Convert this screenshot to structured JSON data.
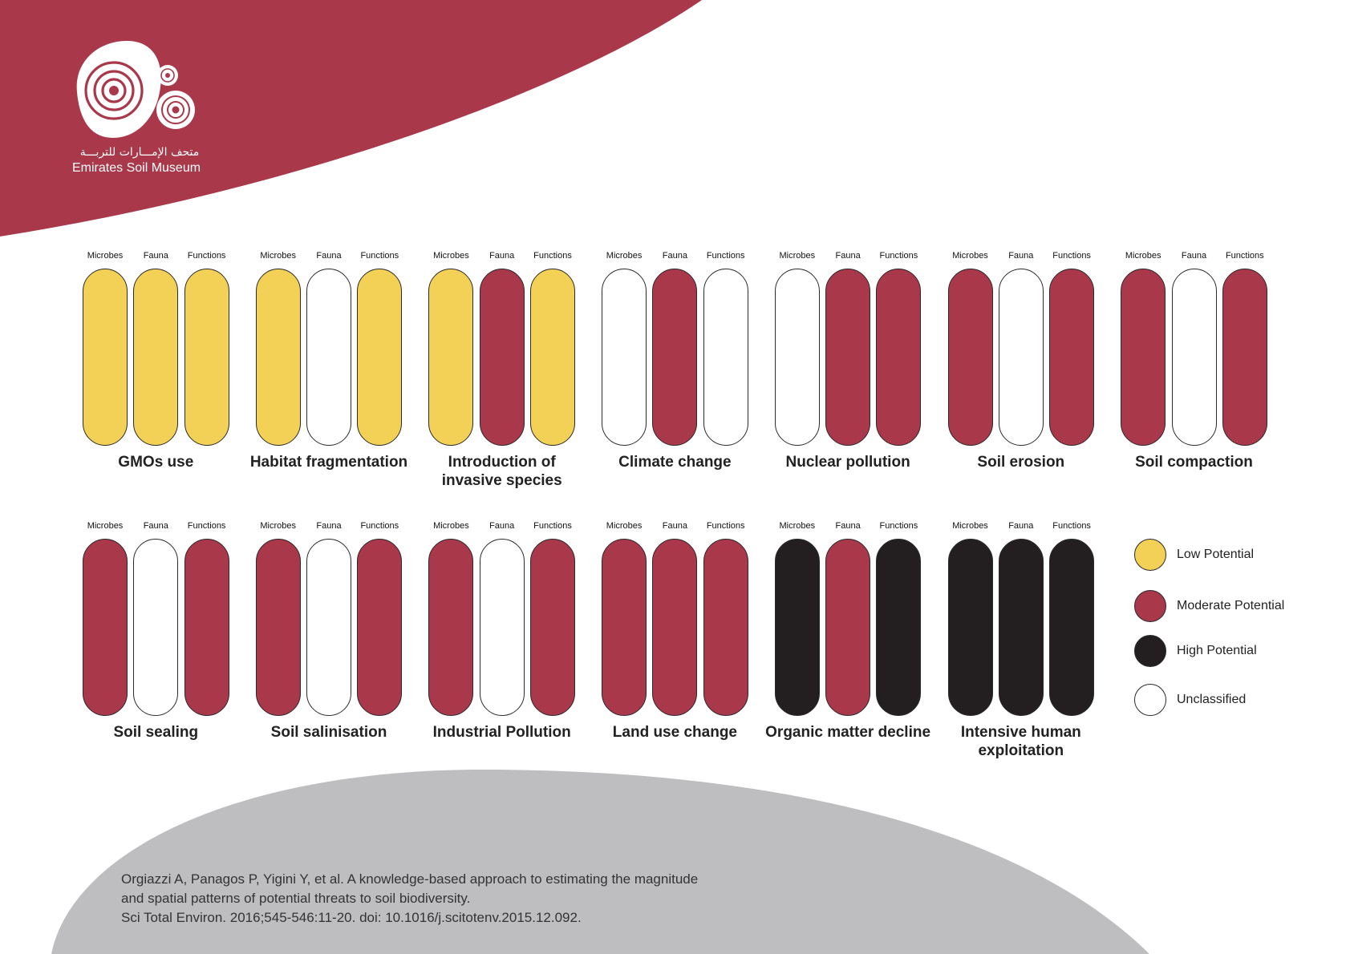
{
  "brand": {
    "name_ar": "متحف الإمـــارات للتربـــة",
    "name_en": "Emirates Soil Museum"
  },
  "theme": {
    "band_color": "#A9384B",
    "footer_color": "#BEBEC0"
  },
  "chart_data": {
    "type": "heatmap",
    "columns": [
      "Microbes",
      "Fauna",
      "Functions"
    ],
    "legend": [
      {
        "label": "Low Potential",
        "color": "#F2D156"
      },
      {
        "label": "Moderate Potential",
        "color": "#A9384B"
      },
      {
        "label": "High Potential",
        "color": "#231F20"
      },
      {
        "label": "Unclassified",
        "color": "#FFFFFF"
      }
    ],
    "threats": [
      {
        "label": [
          "GMOs use"
        ],
        "values": [
          "Low Potential",
          "Low Potential",
          "Low Potential"
        ]
      },
      {
        "label": [
          "Habitat fragmentation"
        ],
        "values": [
          "Low Potential",
          "Unclassified",
          "Low Potential"
        ]
      },
      {
        "label": [
          "Introduction of",
          "invasive species"
        ],
        "values": [
          "Low Potential",
          "Moderate Potential",
          "Low Potential"
        ]
      },
      {
        "label": [
          "Climate change"
        ],
        "values": [
          "Unclassified",
          "Moderate Potential",
          "Unclassified"
        ]
      },
      {
        "label": [
          "Nuclear pollution"
        ],
        "values": [
          "Unclassified",
          "Moderate Potential",
          "Moderate Potential"
        ]
      },
      {
        "label": [
          "Soil erosion"
        ],
        "values": [
          "Moderate Potential",
          "Unclassified",
          "Moderate Potential"
        ]
      },
      {
        "label": [
          "Soil compaction"
        ],
        "values": [
          "Moderate Potential",
          "Unclassified",
          "Moderate Potential"
        ]
      },
      {
        "label": [
          "Soil sealing"
        ],
        "values": [
          "Moderate Potential",
          "Unclassified",
          "Moderate Potential"
        ]
      },
      {
        "label": [
          "Soil salinisation"
        ],
        "values": [
          "Moderate Potential",
          "Unclassified",
          "Moderate Potential"
        ]
      },
      {
        "label": [
          "Industrial Pollution"
        ],
        "values": [
          "Moderate Potential",
          "Unclassified",
          "Moderate Potential"
        ]
      },
      {
        "label": [
          "Land use change"
        ],
        "values": [
          "Moderate Potential",
          "Moderate Potential",
          "Moderate Potential"
        ]
      },
      {
        "label": [
          "Organic matter decline"
        ],
        "values": [
          "High Potential",
          "Moderate Potential",
          "High Potential"
        ]
      },
      {
        "label": [
          "Intensive human",
          "exploitation"
        ],
        "values": [
          "High Potential",
          "High Potential",
          "High Potential"
        ]
      }
    ]
  },
  "citation": {
    "lines": [
      "Orgiazzi A, Panagos P, Yigini Y, et al. A knowledge-based approach to estimating the magnitude",
      "and spatial patterns of potential threats to soil biodiversity.",
      "Sci Total Environ. 2016;545-546:11-20. doi: 10.1016/j.scitotenv.2015.12.092."
    ]
  }
}
